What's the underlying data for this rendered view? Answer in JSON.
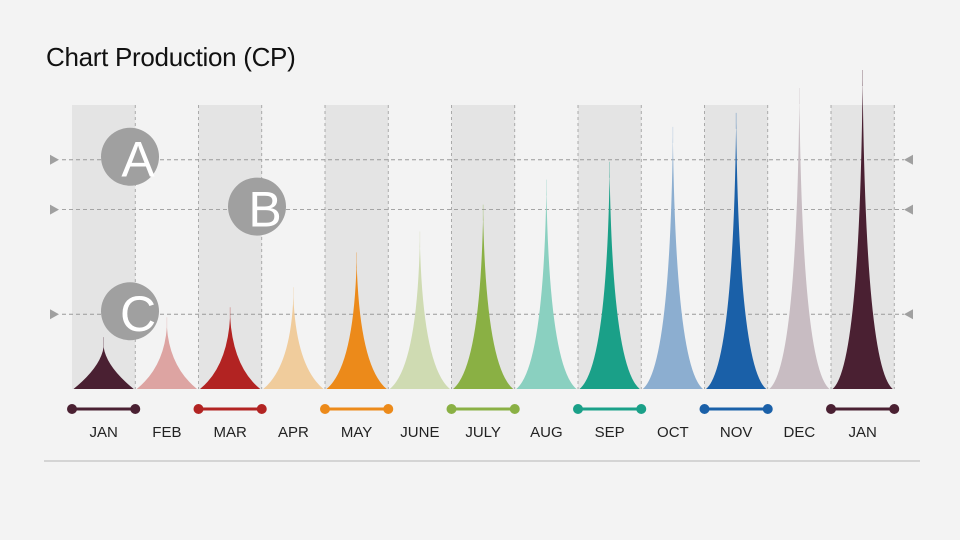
{
  "title": "Chart Production (CP)",
  "levels": [
    {
      "label": "A",
      "value": 230
    },
    {
      "label": "B",
      "value": 180
    },
    {
      "label": "C",
      "value": 75
    }
  ],
  "chart_data": {
    "type": "area",
    "title": "Chart Production (CP)",
    "categories": [
      "JAN",
      "FEB",
      "MAR",
      "APR",
      "MAY",
      "JUNE",
      "JULY",
      "AUG",
      "SEP",
      "OCT",
      "NOV",
      "DEC",
      "JAN"
    ],
    "values": [
      42,
      62,
      72,
      92,
      127,
      148,
      175,
      200,
      218,
      253,
      267,
      292,
      310
    ],
    "colors": [
      "#4a2032",
      "#dda4a2",
      "#b22322",
      "#f0cc9c",
      "#ec8a1a",
      "#cfdbb2",
      "#8ab044",
      "#8ad0c0",
      "#1aa088",
      "#8caed0",
      "#1a60a8",
      "#c8bcc2",
      "#4a2032"
    ],
    "ylim": [
      0,
      310
    ],
    "grid": true
  },
  "colors": {
    "band": "#e4e4e4",
    "grid": "#9a9a9a",
    "marker": "#a0a0a0",
    "circle": "#a0a0a0",
    "baseline": "#b4b4b4"
  }
}
